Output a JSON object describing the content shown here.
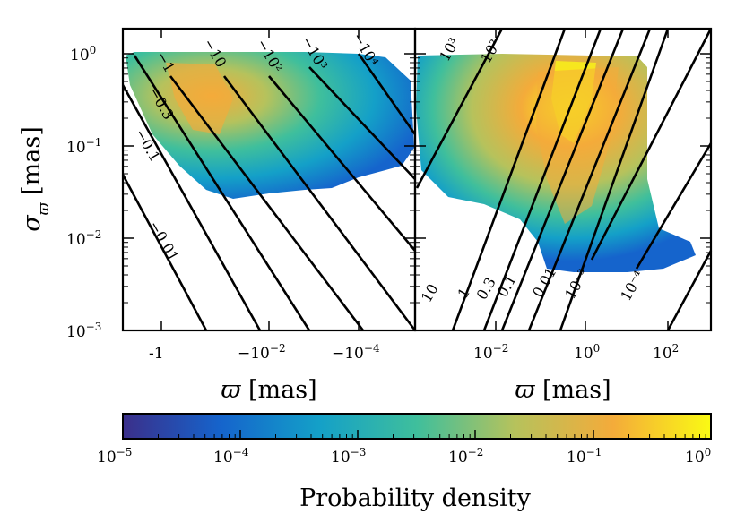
{
  "chart_data": [
    {
      "type": "heatmap",
      "panel": "left",
      "xlabel": "ϖ [mas]",
      "ylabel": "σ_ϖ [mas]",
      "x_scale": "symlog-negative",
      "y_scale": "log",
      "ylim": [
        0.001,
        2
      ],
      "x_ticks": [
        "-1",
        "−10^{−2}",
        "−10^{−4}"
      ],
      "y_ticks": [
        "10^{−3}",
        "10^{−2}",
        "10^{−1}",
        "10^{0}"
      ],
      "contour_levels": [
        "−0.01",
        "−0.1",
        "−0.3",
        "−1",
        "−10",
        "−10^2",
        "−10^3",
        "−10^4"
      ],
      "density_peak": {
        "x": -0.1,
        "y": 0.4,
        "value": 0.1
      }
    },
    {
      "type": "heatmap",
      "panel": "right",
      "xlabel": "ϖ [mas]",
      "x_scale": "log",
      "y_scale": "log",
      "xlim": [
        0.0001,
        1000
      ],
      "ylim": [
        0.001,
        2
      ],
      "x_ticks": [
        "10^{−2}",
        "10^{0}",
        "10^{2}"
      ],
      "contour_levels": [
        "10",
        "1",
        "0.3",
        "0.1",
        "0.01",
        "10^{−3}",
        "10^{−4}",
        "10^3",
        "10^2"
      ],
      "density_peak": {
        "x": 1,
        "y": 0.5,
        "value": 1
      }
    }
  ],
  "colorbar": {
    "label": "Probability density",
    "scale": "log",
    "range": [
      1e-05,
      1
    ],
    "ticks": [
      "10^{−5}",
      "10^{−4}",
      "10^{−3}",
      "10^{−2}",
      "10^{−1}",
      "10^{0}"
    ],
    "colors": [
      "#3b2f8a",
      "#1564cc",
      "#14a0c8",
      "#3fbf9c",
      "#b6c25c",
      "#f4ab3a",
      "#fafa14"
    ]
  }
}
